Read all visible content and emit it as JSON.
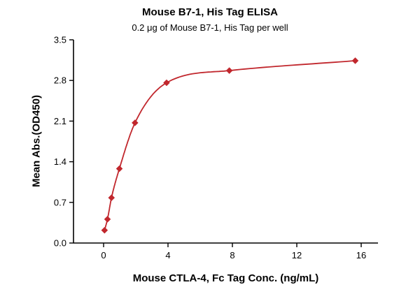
{
  "chart_data": {
    "type": "scatter",
    "title": "Mouse B7-1, His Tag ELISA",
    "subtitle": "0.2 μg of Mouse B7-1, His Tag per well",
    "xlabel": "Mouse CTLA-4, Fc Tag Conc. (ng/mL)",
    "ylabel": "Mean Abs.(OD450)",
    "x": [
      0.06,
      0.24,
      0.49,
      0.98,
      1.95,
      3.91,
      7.81,
      15.63
    ],
    "y": [
      0.22,
      0.41,
      0.78,
      1.28,
      2.07,
      2.76,
      2.97,
      3.14
    ],
    "curve": "4PL-fit",
    "xlim": [
      0,
      16
    ],
    "ylim": [
      0,
      3.5
    ],
    "x_ticks": [
      0,
      4,
      8,
      12,
      16
    ],
    "y_ticks": [
      0,
      0.7,
      1.4,
      2.1,
      2.8,
      3.5
    ],
    "x_tick_labels": [
      "0",
      "4",
      "8",
      "12",
      "16"
    ],
    "y_tick_labels": [
      "0.0",
      "0.7",
      "1.4",
      "2.1",
      "2.8",
      "3.5"
    ],
    "grid": false,
    "legend_position": "none",
    "marker": "diamond",
    "color": "#c1272d",
    "axis_color": "#000000"
  }
}
